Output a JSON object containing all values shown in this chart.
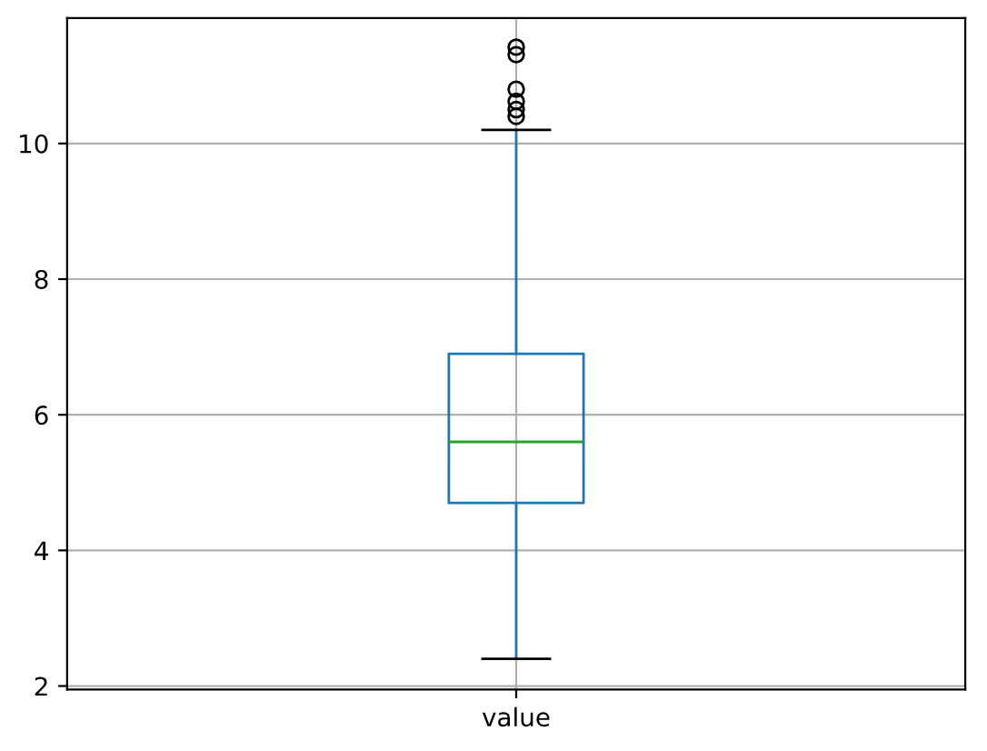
{
  "chart_data": {
    "type": "box",
    "categories": [
      "value"
    ],
    "boxes": [
      {
        "low": 2.4,
        "q1": 4.7,
        "median": 5.6,
        "q3": 6.9,
        "high": 10.2,
        "outliers": [
          11.42,
          11.31,
          10.8,
          10.62,
          10.5,
          10.4
        ]
      }
    ],
    "color": "#1f77b4",
    "ylim": [
      1.95,
      11.85
    ],
    "yticks": [
      2,
      4,
      6,
      8,
      10
    ],
    "grid": true
  }
}
